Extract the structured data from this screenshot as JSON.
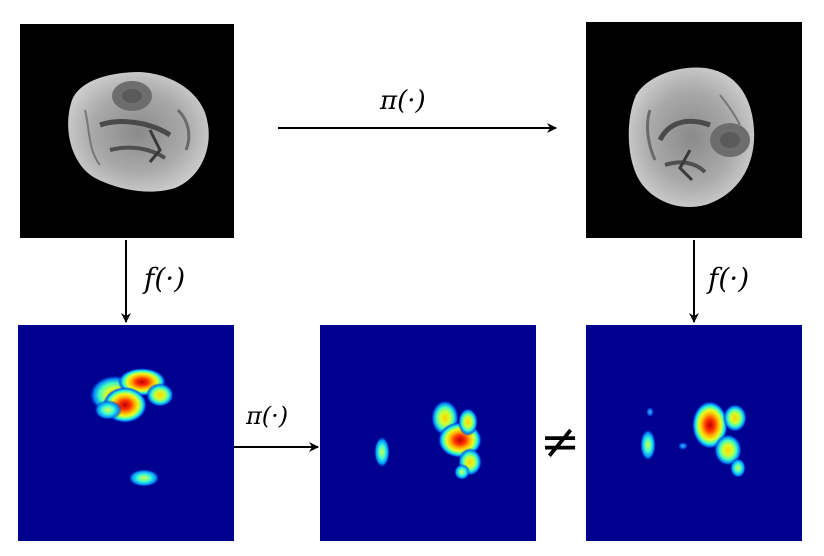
{
  "labels": {
    "pi_top": "π(·)",
    "f_left": "f(·)",
    "f_right": "f(·)",
    "pi_bottom": "π(·)",
    "not_equal": "≠"
  },
  "colors": {
    "brain_background": "#000000",
    "heatmap_background": "#00008f",
    "arrow": "#000000"
  }
}
